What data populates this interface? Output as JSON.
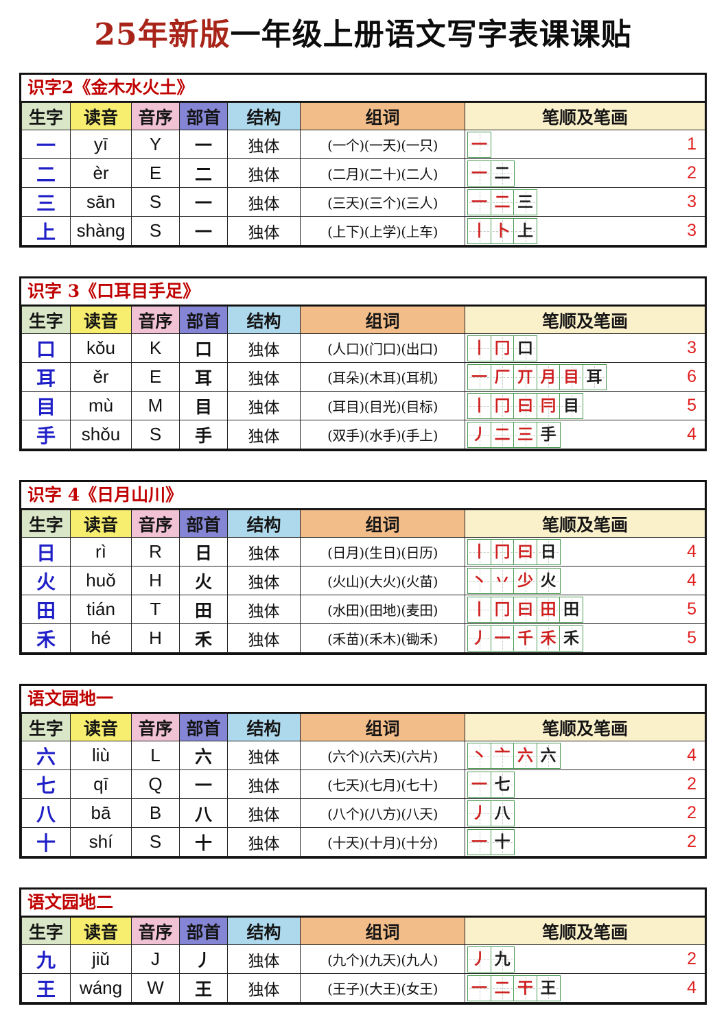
{
  "page_title": {
    "red": "25年新版",
    "black": "一年级上册语文写字表课课贴"
  },
  "columns": [
    {
      "key": "char",
      "label": "生字",
      "bg": "#d9e7c8"
    },
    {
      "key": "pinyin",
      "label": "读音",
      "bg": "#f7ee6f"
    },
    {
      "key": "initial",
      "label": "音序",
      "bg": "#f1c2d3"
    },
    {
      "key": "radical",
      "label": "部首",
      "bg": "#8585d6"
    },
    {
      "key": "structure",
      "label": "结构",
      "bg": "#aed9ec"
    },
    {
      "key": "words",
      "label": "组词",
      "bg": "#f3bd8a"
    },
    {
      "key": "strokes",
      "label": "笔顺及笔画",
      "bg": "#faf0ca"
    }
  ],
  "colors": {
    "title_red": "#a82318",
    "lesson_title_red": "#c00000",
    "char_blue": "#1f1fc8",
    "stroke_red": "#cf2020",
    "count_red": "#e02020",
    "stroke_box_green": "#4a9a52"
  },
  "tables": [
    {
      "title": "识字2《金木水火土》",
      "rows": [
        {
          "char": "一",
          "pinyin": "yī",
          "initial": "Y",
          "radical": "一",
          "structure": "独体",
          "words": "(一个)(一天)(一只)",
          "stroke_steps": [
            "一"
          ],
          "stroke_count": 1
        },
        {
          "char": "二",
          "pinyin": "èr",
          "initial": "E",
          "radical": "二",
          "structure": "独体",
          "words": "(二月)(二十)(二人)",
          "stroke_steps": [
            "一",
            "二"
          ],
          "stroke_count": 2
        },
        {
          "char": "三",
          "pinyin": "sān",
          "initial": "S",
          "radical": "一",
          "structure": "独体",
          "words": "(三天)(三个)(三人)",
          "stroke_steps": [
            "一",
            "二",
            "三"
          ],
          "stroke_count": 3
        },
        {
          "char": "上",
          "pinyin": "shàng",
          "initial": "S",
          "radical": "一",
          "structure": "独体",
          "words": "(上下)(上学)(上车)",
          "stroke_steps": [
            "丨",
            "卜",
            "上"
          ],
          "stroke_count": 3
        }
      ]
    },
    {
      "title": "识字 3《口耳目手足》",
      "rows": [
        {
          "char": "口",
          "pinyin": "kǒu",
          "initial": "K",
          "radical": "口",
          "structure": "独体",
          "words": "(人口)(门口)(出口)",
          "stroke_steps": [
            "丨",
            "冂",
            "口"
          ],
          "stroke_count": 3
        },
        {
          "char": "耳",
          "pinyin": "ěr",
          "initial": "E",
          "radical": "耳",
          "structure": "独体",
          "words": "(耳朵)(木耳)(耳机)",
          "stroke_steps": [
            "一",
            "厂",
            "丌",
            "月",
            "目",
            "耳"
          ],
          "stroke_count": 6
        },
        {
          "char": "目",
          "pinyin": "mù",
          "initial": "M",
          "radical": "目",
          "structure": "独体",
          "words": "(耳目)(目光)(目标)",
          "stroke_steps": [
            "丨",
            "冂",
            "曰",
            "冃",
            "目"
          ],
          "stroke_count": 5
        },
        {
          "char": "手",
          "pinyin": "shǒu",
          "initial": "S",
          "radical": "手",
          "structure": "独体",
          "words": "(双手)(水手)(手上)",
          "stroke_steps": [
            "丿",
            "二",
            "三",
            "手"
          ],
          "stroke_count": 4
        }
      ]
    },
    {
      "title": "识字 4《日月山川》",
      "rows": [
        {
          "char": "日",
          "pinyin": "rì",
          "initial": "R",
          "radical": "日",
          "structure": "独体",
          "words": "(日月)(生日)(日历)",
          "stroke_steps": [
            "丨",
            "冂",
            "曰",
            "日"
          ],
          "stroke_count": 4
        },
        {
          "char": "火",
          "pinyin": "huǒ",
          "initial": "H",
          "radical": "火",
          "structure": "独体",
          "words": "(火山)(大火)(火苗)",
          "stroke_steps": [
            "丶",
            "丷",
            "少",
            "火"
          ],
          "stroke_count": 4
        },
        {
          "char": "田",
          "pinyin": "tián",
          "initial": "T",
          "radical": "田",
          "structure": "独体",
          "words": "(水田)(田地)(麦田)",
          "stroke_steps": [
            "丨",
            "冂",
            "曰",
            "田",
            "田"
          ],
          "stroke_count": 5
        },
        {
          "char": "禾",
          "pinyin": "hé",
          "initial": "H",
          "radical": "禾",
          "structure": "独体",
          "words": "(禾苗)(禾木)(锄禾)",
          "stroke_steps": [
            "丿",
            "一",
            "千",
            "禾",
            "禾"
          ],
          "stroke_count": 5
        }
      ]
    },
    {
      "title": "语文园地一",
      "rows": [
        {
          "char": "六",
          "pinyin": "liù",
          "initial": "L",
          "radical": "六",
          "structure": "独体",
          "words": "(六个)(六天)(六片)",
          "stroke_steps": [
            "丶",
            "亠",
            "六",
            "六"
          ],
          "stroke_count": 4
        },
        {
          "char": "七",
          "pinyin": "qī",
          "initial": "Q",
          "radical": "一",
          "structure": "独体",
          "words": "(七天)(七月)(七十)",
          "stroke_steps": [
            "一",
            "七"
          ],
          "stroke_count": 2
        },
        {
          "char": "八",
          "pinyin": "bā",
          "initial": "B",
          "radical": "八",
          "structure": "独体",
          "words": "(八个)(八方)(八天)",
          "stroke_steps": [
            "丿",
            "八"
          ],
          "stroke_count": 2
        },
        {
          "char": "十",
          "pinyin": "shí",
          "initial": "S",
          "radical": "十",
          "structure": "独体",
          "words": "(十天)(十月)(十分)",
          "stroke_steps": [
            "一",
            "十"
          ],
          "stroke_count": 2
        }
      ]
    },
    {
      "title": "语文园地二",
      "rows": [
        {
          "char": "九",
          "pinyin": "jiǔ",
          "initial": "J",
          "radical": "丿",
          "structure": "独体",
          "words": "(九个)(九天)(九人)",
          "stroke_steps": [
            "丿",
            "九"
          ],
          "stroke_count": 2
        },
        {
          "char": "王",
          "pinyin": "wáng",
          "initial": "W",
          "radical": "王",
          "structure": "独体",
          "words": "(王子)(大王)(女王)",
          "stroke_steps": [
            "一",
            "二",
            "干",
            "王"
          ],
          "stroke_count": 4
        }
      ]
    }
  ]
}
